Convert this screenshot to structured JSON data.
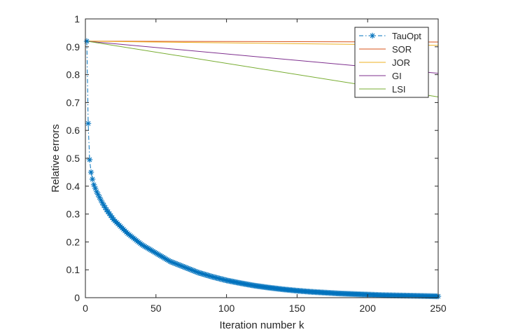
{
  "chart_data": {
    "type": "line",
    "title": "",
    "xlabel": "Iteration number k",
    "ylabel": "Relative errors",
    "xlim": [
      0,
      250
    ],
    "ylim": [
      0,
      1
    ],
    "xticks": [
      0,
      50,
      100,
      150,
      200,
      250
    ],
    "yticks": [
      0,
      0.1,
      0.2,
      0.3,
      0.4,
      0.5,
      0.6,
      0.7,
      0.8,
      0.9,
      1
    ],
    "grid": false,
    "legend_position": "top-right",
    "series": [
      {
        "name": "TauOpt",
        "color": "#0072BD",
        "style": "dash-dot",
        "marker": "asterisk",
        "x": [
          1,
          2,
          3,
          4,
          5,
          6,
          8,
          10,
          12,
          15,
          20,
          25,
          30,
          40,
          50,
          60,
          70,
          80,
          90,
          100,
          110,
          120,
          130,
          140,
          150,
          160,
          170,
          180,
          190,
          200,
          210,
          220,
          230,
          240,
          250
        ],
        "y": [
          0.92,
          0.625,
          0.495,
          0.45,
          0.425,
          0.405,
          0.38,
          0.36,
          0.34,
          0.315,
          0.28,
          0.255,
          0.23,
          0.19,
          0.16,
          0.13,
          0.11,
          0.09,
          0.075,
          0.062,
          0.052,
          0.043,
          0.036,
          0.03,
          0.025,
          0.021,
          0.018,
          0.015,
          0.013,
          0.011,
          0.009,
          0.008,
          0.007,
          0.006,
          0.005
        ]
      },
      {
        "name": "SOR",
        "color": "#D95319",
        "style": "solid",
        "x": [
          1,
          250
        ],
        "y": [
          0.92,
          0.917
        ]
      },
      {
        "name": "JOR",
        "color": "#EDB120",
        "style": "solid",
        "x": [
          1,
          250
        ],
        "y": [
          0.92,
          0.905
        ]
      },
      {
        "name": "GI",
        "color": "#7E2F8E",
        "style": "solid",
        "x": [
          1,
          250
        ],
        "y": [
          0.92,
          0.805
        ]
      },
      {
        "name": "LSI",
        "color": "#77AC30",
        "style": "solid",
        "x": [
          1,
          250
        ],
        "y": [
          0.92,
          0.72
        ]
      }
    ]
  }
}
